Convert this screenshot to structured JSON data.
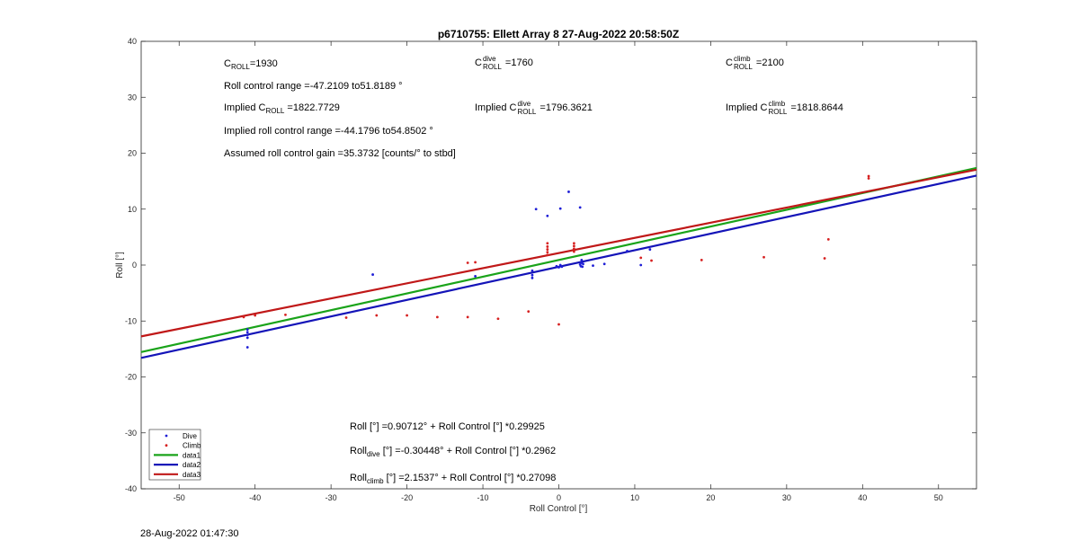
{
  "chart_data": {
    "type": "scatter",
    "title": "p6710755: Ellett Array 8 27-Aug-2022 20:58:50Z",
    "xlabel": "Roll Control [°]",
    "ylabel": "Roll [°]",
    "xlim": [
      -55,
      55
    ],
    "ylim": [
      -40,
      40
    ],
    "xticks": [
      -50,
      -40,
      -30,
      -20,
      -10,
      0,
      10,
      20,
      30,
      40,
      50
    ],
    "yticks": [
      -40,
      -30,
      -20,
      -10,
      0,
      10,
      20,
      30,
      40
    ],
    "grid": false,
    "legend_position": "bottom-left",
    "legend": [
      "Dive",
      "Climb",
      "data1",
      "data2",
      "data3"
    ],
    "colors": {
      "dive": "#1f1fd6",
      "climb": "#d62020",
      "data1": "#1aa31a",
      "data2": "#1414b8",
      "data3": "#c01818",
      "axis": "#262626"
    },
    "series": [
      {
        "name": "Dive",
        "kind": "scatter",
        "color": "#1f1fd6",
        "points": [
          [
            -41,
            -11.5
          ],
          [
            -41,
            -12
          ],
          [
            -41,
            -12.5
          ],
          [
            -41,
            -13
          ],
          [
            -41,
            -14.7
          ],
          [
            -24.5,
            -1.7
          ],
          [
            -11,
            -2
          ],
          [
            -3.5,
            -1
          ],
          [
            -3.5,
            -1.8
          ],
          [
            -3.5,
            -2.3
          ],
          [
            -3,
            10
          ],
          [
            -1.5,
            8.8
          ],
          [
            0.2,
            10.1
          ],
          [
            1.3,
            13.1
          ],
          [
            2.8,
            10.3
          ],
          [
            -0.3,
            -0.2
          ],
          [
            0,
            -0.4
          ],
          [
            0.2,
            0
          ],
          [
            0.4,
            -0.3
          ],
          [
            2.8,
            0.1
          ],
          [
            2.9,
            -0.2
          ],
          [
            3,
            0.4
          ],
          [
            3,
            0.9
          ],
          [
            3.1,
            -0.3
          ],
          [
            3.2,
            0.2
          ],
          [
            4.5,
            -0.1
          ],
          [
            6,
            0.2
          ],
          [
            9,
            2.5
          ],
          [
            10.8,
            0
          ],
          [
            12,
            2.8
          ]
        ]
      },
      {
        "name": "Climb",
        "kind": "scatter",
        "color": "#d62020",
        "points": [
          [
            -41.5,
            -9.3
          ],
          [
            -40,
            -9
          ],
          [
            -36,
            -8.9
          ],
          [
            -28,
            -9.4
          ],
          [
            -24,
            -9
          ],
          [
            -20,
            -9
          ],
          [
            -16,
            -9.3
          ],
          [
            -12,
            -9.3
          ],
          [
            -8,
            -9.6
          ],
          [
            -4,
            -8.3
          ],
          [
            -12,
            0.4
          ],
          [
            -11,
            0.5
          ],
          [
            -1.5,
            1.8
          ],
          [
            -1.5,
            2.3
          ],
          [
            -1.5,
            2.8
          ],
          [
            -1.5,
            3.3
          ],
          [
            -1.5,
            3.9
          ],
          [
            0,
            -10.6
          ],
          [
            2,
            2.4
          ],
          [
            2,
            2.9
          ],
          [
            2,
            3.4
          ],
          [
            2,
            3.9
          ],
          [
            10.8,
            1.3
          ],
          [
            12.2,
            0.8
          ],
          [
            18.8,
            0.9
          ],
          [
            27,
            1.4
          ],
          [
            35,
            1.2
          ],
          [
            35.5,
            4.6
          ],
          [
            40.8,
            15.5
          ],
          [
            40.8,
            15.9
          ]
        ]
      },
      {
        "name": "data1",
        "kind": "line",
        "color": "#1aa31a",
        "intercept": 0.90712,
        "slope": 0.29925,
        "x": [
          -55,
          55
        ]
      },
      {
        "name": "data2",
        "kind": "line",
        "color": "#1414b8",
        "intercept": -0.30448,
        "slope": 0.2962,
        "x": [
          -55,
          55
        ]
      },
      {
        "name": "data3",
        "kind": "line",
        "color": "#c01818",
        "intercept": 2.1537,
        "slope": 0.27098,
        "x": [
          -55,
          55
        ]
      }
    ]
  },
  "annotations": {
    "c_roll_label": "C",
    "c_roll_sub": "ROLL",
    "c_roll_value": "=1930",
    "roll_range": "Roll control range =-47.2109 to51.8189 °",
    "implied_c_roll_prefix": "Implied C",
    "implied_c_roll_sub": "ROLL",
    "implied_c_roll_value": " =1822.7729",
    "implied_range": "Implied roll control range =-44.1796 to54.8502 °",
    "gain": "Assumed roll control gain =35.3732 [counts/° to stbd]",
    "c_dive_label": "C",
    "c_dive_sup": "dive",
    "c_dive_sub": "ROLL",
    "c_dive_value": " =1760",
    "implied_dive_prefix": "Implied C",
    "implied_dive_sup": "dive",
    "implied_dive_sub": "ROLL",
    "implied_dive_value": " =1796.3621",
    "c_climb_label": "C",
    "c_climb_sup": "climb",
    "c_climb_sub": "ROLL",
    "c_climb_value": " =2100",
    "implied_climb_prefix": "Implied C",
    "implied_climb_sup": "climb",
    "implied_climb_sub": "ROLL",
    "implied_climb_value": " =1818.8644",
    "fit_all": "Roll [°] =0.90712° + Roll Control [°] *0.29925",
    "fit_dive_prefix": "Roll",
    "fit_dive_sub": "dive",
    "fit_dive_rest": " [°] =-0.30448° + Roll Control [°] *0.2962",
    "fit_climb_prefix": "Roll",
    "fit_climb_sub": "climb",
    "fit_climb_rest": " [°] =2.1537° + Roll Control [°] *0.27098"
  },
  "footer": {
    "timestamp": "28-Aug-2022 01:47:30"
  }
}
